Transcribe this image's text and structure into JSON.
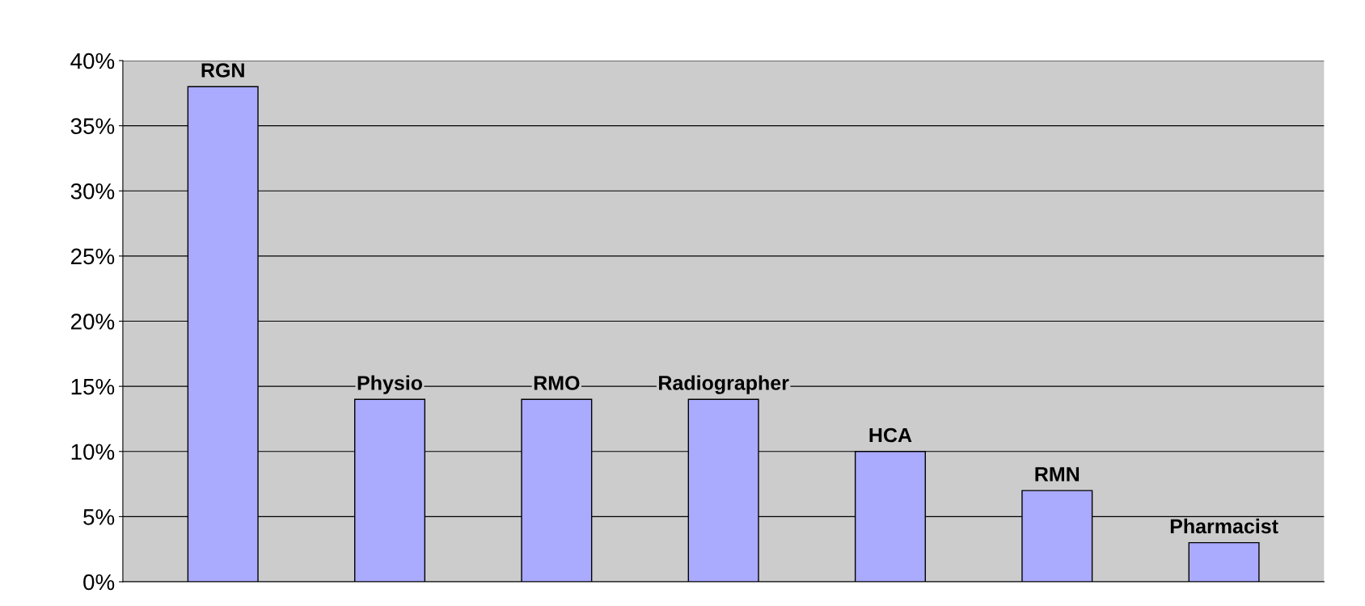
{
  "chart_data": {
    "type": "bar",
    "categories": [
      "RGN",
      "Physio",
      "RMO",
      "Radiographer",
      "HCA",
      "RMN",
      "Pharmacist"
    ],
    "values": [
      38,
      14,
      14,
      14,
      10,
      7,
      3
    ],
    "color": "#aaaaff",
    "ylim": [
      0,
      40
    ],
    "yticks": [
      {
        "value": 0,
        "label": "0%"
      },
      {
        "value": 5,
        "label": "5%"
      },
      {
        "value": 10,
        "label": "10%"
      },
      {
        "value": 15,
        "label": "15%"
      },
      {
        "value": 20,
        "label": "20%"
      },
      {
        "value": 25,
        "label": "25%"
      },
      {
        "value": 30,
        "label": "30%"
      },
      {
        "value": 35,
        "label": "35%"
      },
      {
        "value": 40,
        "label": "40%"
      }
    ],
    "grid": "y",
    "tick_labels": "y"
  }
}
